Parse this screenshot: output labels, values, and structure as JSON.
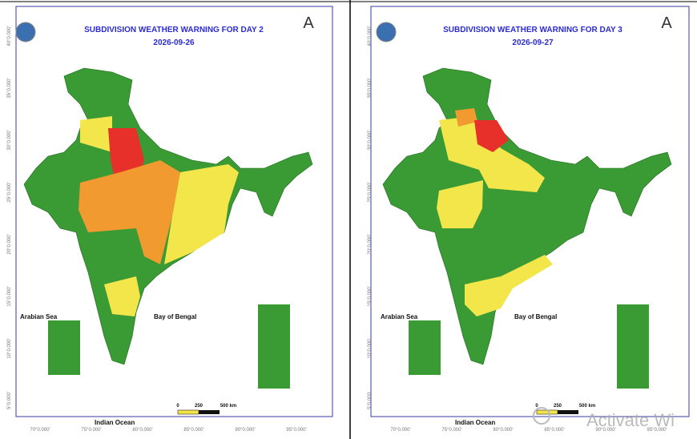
{
  "panels": [
    {
      "title": "SUBDIVISION WEATHER WARNING FOR DAY 2",
      "date": "2026-09-26",
      "arabian_sea": "Arabian Sea",
      "bay_of_bengal": "Bay of Bengal",
      "indian_ocean": "Indian Ocean",
      "lat_labels": [
        "40°0.000'",
        "35°0.000'",
        "30°0.000'",
        "25°0.000'",
        "20°0.000'",
        "15°0.000'",
        "10°0.000'",
        "5°0.000'"
      ],
      "lon_labels": [
        "70°0.000'",
        "75°0.000'",
        "80°0.000'",
        "85°0.000'",
        "90°0.000'",
        "95°0.000'"
      ],
      "scale_labels": [
        "0",
        "250",
        "500 km"
      ]
    },
    {
      "title": "SUBDIVISION WEATHER WARNING FOR DAY 3",
      "date": "2026-09-27",
      "arabian_sea": "Arabian Sea",
      "bay_of_bengal": "Bay of Bengal",
      "indian_ocean": "Indian Ocean",
      "lat_labels": [
        "40°0.000'",
        "35°0.000'",
        "30°0.000'",
        "25°0.000'",
        "20°0.000'",
        "15°0.000'",
        "10°0.000'",
        "5°0.000'"
      ],
      "lon_labels": [
        "70°0.000'",
        "75°0.000'",
        "80°0.000'",
        "85°0.000'",
        "90°0.000'",
        "95°0.000'"
      ],
      "scale_labels": [
        "0",
        "250",
        "500 km"
      ]
    }
  ],
  "watermark": "Activate Wi"
}
